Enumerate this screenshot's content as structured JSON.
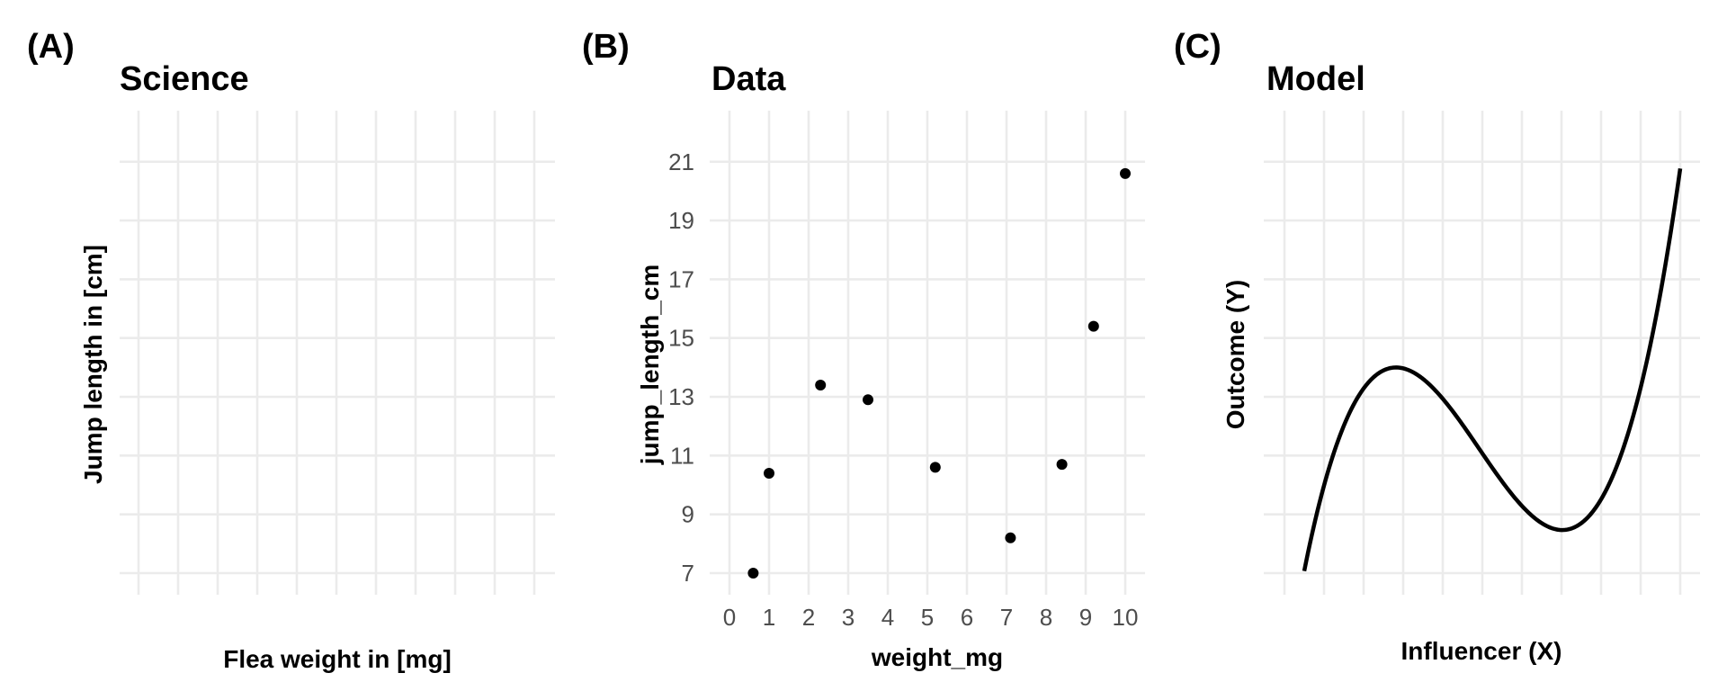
{
  "colors": {
    "grid": "#ebebeb",
    "ink": "#000000",
    "tick_text": "#4d4d4d"
  },
  "chart_data": [
    {
      "panel_tag": "(A)",
      "type": "scatter",
      "title": "Science",
      "xlabel": "Flea weight in [mg]",
      "ylabel": "Jump length in [cm]",
      "xlim": [
        0,
        10
      ],
      "ylim": [
        7,
        21
      ],
      "x_gridlines": [
        0,
        1,
        2,
        3,
        4,
        5,
        6,
        7,
        8,
        9,
        10
      ],
      "y_gridlines": [
        7,
        9,
        11,
        13,
        15,
        17,
        19,
        21
      ],
      "tick_labels_shown": false,
      "grid": true,
      "points": []
    },
    {
      "panel_tag": "(B)",
      "type": "scatter",
      "title": "Data",
      "xlabel": "weight_mg",
      "ylabel": "jump_length_cm",
      "xlim": [
        0,
        10
      ],
      "ylim": [
        7,
        21
      ],
      "x_ticks": [
        "0",
        "1",
        "2",
        "3",
        "4",
        "5",
        "6",
        "7",
        "8",
        "9",
        "10"
      ],
      "y_ticks": [
        "7",
        "9",
        "11",
        "13",
        "15",
        "17",
        "19",
        "21"
      ],
      "grid": true,
      "points": [
        {
          "x": 0.6,
          "y": 7.0
        },
        {
          "x": 1.0,
          "y": 10.4
        },
        {
          "x": 2.3,
          "y": 13.4
        },
        {
          "x": 3.5,
          "y": 12.9
        },
        {
          "x": 5.2,
          "y": 10.6
        },
        {
          "x": 7.1,
          "y": 8.2
        },
        {
          "x": 8.4,
          "y": 10.7
        },
        {
          "x": 9.2,
          "y": 15.4
        },
        {
          "x": 10.0,
          "y": 20.6
        }
      ]
    },
    {
      "panel_tag": "(C)",
      "type": "line",
      "title": "Model",
      "xlabel": "Influencer (X)",
      "ylabel": "Outcome (Y)",
      "xlim": [
        0,
        10
      ],
      "ylim": [
        7,
        21
      ],
      "x_gridlines": [
        0,
        1,
        2,
        3,
        4,
        5,
        6,
        7,
        8,
        9,
        10
      ],
      "y_gridlines": [
        7,
        9,
        11,
        13,
        15,
        17,
        19,
        21
      ],
      "tick_labels_shown": false,
      "grid": true,
      "curve": {
        "kind": "cubic",
        "x_range": [
          0.5,
          10
        ],
        "coefficients": {
          "a3": 0.1493,
          "a2": -2.2037,
          "a1": 8.867,
          "a0": 3.17
        },
        "local_max": {
          "x": 2.82,
          "y": 14.0
        },
        "local_min": {
          "x": 7.02,
          "y": 8.47
        }
      }
    }
  ]
}
